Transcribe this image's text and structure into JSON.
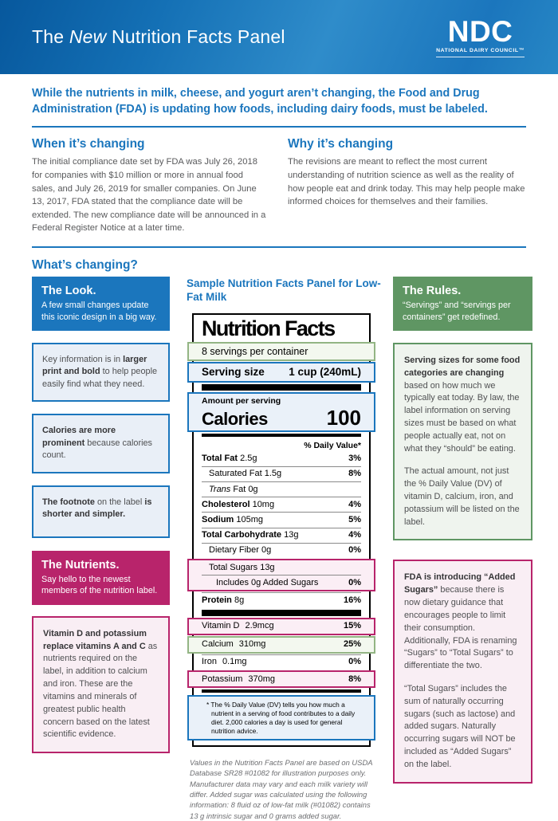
{
  "colors": {
    "brand_blue": "#1b76bd",
    "brand_green": "#5f9663",
    "brand_magenta": "#b8246b",
    "body_gray": "#58595b"
  },
  "banner": {
    "title": "The *New* Nutrition Facts Panel",
    "logo_acronym": "NDC",
    "logo_name": "NATIONAL DAIRY COUNCIL™"
  },
  "intro": "While the nutrients in milk, cheese, and yogurt aren’t changing, the Food and Drug Administration (FDA) is updating how foods, including dairy foods, must be labeled.",
  "when": {
    "heading": "When it’s changing",
    "body": "The initial compliance date set by FDA was July 26, 2018 for companies with $10 million or more in annual food sales, and July 26, 2019 for smaller companies. On June 13, 2017, FDA stated that the compliance date will be extended.  The new compliance date will be announced in a Federal Register Notice at a later time."
  },
  "why": {
    "heading": "Why it’s changing",
    "body": "The revisions are meant to reflect the most current understanding of nutrition science as well as the reality of how people eat and drink today. This may help people make informed choices for themselves and their families."
  },
  "whats_changing_heading": "What’s changing?",
  "left_column": {
    "look_header": {
      "title": "The Look.",
      "body": "A few small changes update this iconic design in a big way."
    },
    "boxes": [
      "Key information is in **larger print and bold** to help people easily find what they need.",
      "**Calories are more prominent** because calories count.",
      "**The footnote** on the label **is shorter and simpler.**"
    ],
    "nutrients_header": {
      "title": "The Nutrients.",
      "body": "Say hello to the newest members of the nutrition label."
    },
    "nutrients_box": "**Vitamin D and potassium replace vitamins A and C** as nutrients required on the label, in addition to calcium and iron. These are the vitamins and minerals of greatest public health concern based on the latest scientific evidence."
  },
  "right_column": {
    "rules_header": {
      "title": "The Rules.",
      "body": "“Servings” and “servings per containers” get redefined."
    },
    "rules_box": [
      "**Serving sizes for some food categories are changing** based on how much we typically eat today. By law, the label information on serving sizes must be based on what people actually eat, not on what they “should” be eating.",
      "The actual amount, not just the % Daily Value (DV) of vitamin D, calcium, iron, and potassium will be listed on the label."
    ],
    "sugars_box": [
      "**FDA is introducing “Added Sugars”** because there is now dietary guidance that encourages people to limit their consumption. Additionally, FDA is renaming “Sugars” to “Total Sugars” to differentiate the two.",
      "“Total Sugars” includes the sum of naturally occurring sugars (such as lactose) and added sugars. Naturally occurring sugars will NOT be included as “Added Sugars” on the label."
    ]
  },
  "label": {
    "sample_heading": "Sample Nutrition Facts Panel for Low-Fat Milk",
    "title": "Nutrition Facts",
    "servings_per_container": "8 servings per container",
    "serving_size_label": "Serving size",
    "serving_size_value": "1 cup (240mL)",
    "amount_per_serving": "Amount per serving",
    "calories_label": "Calories",
    "calories_value": "100",
    "daily_value_header": "% Daily Value*",
    "main_rows": [
      {
        "text": "**Total Fat** 2.5g",
        "value": "**3%**",
        "indent": 0
      },
      {
        "text": "Saturated Fat 1.5g",
        "value": "**8%**",
        "indent": 1
      },
      {
        "text": "*Trans* Fat 0g",
        "value": "",
        "indent": 1
      },
      {
        "text": "**Cholesterol** 10mg",
        "value": "**4%**",
        "indent": 0
      },
      {
        "text": "**Sodium** 105mg",
        "value": "**5%**",
        "indent": 0
      },
      {
        "text": "**Total Carbohydrate** 13g",
        "value": "**4%**",
        "indent": 0
      },
      {
        "text": "Dietary Fiber 0g",
        "value": "**0%**",
        "indent": 1
      },
      {
        "text": "Total Sugars 13g",
        "value": "",
        "indent": 1,
        "grp": "sugars"
      },
      {
        "text": "Includes 0g Added Sugars",
        "value": "**0%**",
        "indent": 2,
        "grp": "sugars"
      },
      {
        "text": "**Protein** 8g",
        "value": "**16%**",
        "indent": 0
      }
    ],
    "groups": {
      "sugars": "hl-pink"
    },
    "vitamin_rows": [
      {
        "name": "Vitamin D",
        "amount": "2.9mcg",
        "value": "15%",
        "hl": "hl-pink"
      },
      {
        "name": "Calcium",
        "amount": "310mg",
        "value": "25%",
        "hl": "hl-green"
      },
      {
        "name": "Iron",
        "amount": "0.1mg",
        "value": "0%",
        "hl": ""
      },
      {
        "name": "Potassium",
        "amount": "370mg",
        "value": "8%",
        "hl": "hl-pink"
      }
    ],
    "footnote": "* The % Daily Value (DV) tells you how much a nutrient in a serving of food contributes to a daily diet. 2,000 calories a day is used for general nutrition advice."
  },
  "disclaimer": "Values in the Nutrition Facts Panel are based on USDA Database SR28 #01082 for illustration purposes only. Manufacturer data may vary and each milk variety will differ. Added sugar was calculated using the following information: 8 fluid oz of low-fat milk (#01082) contains 13 g intrinsic sugar and 0 grams added sugar."
}
